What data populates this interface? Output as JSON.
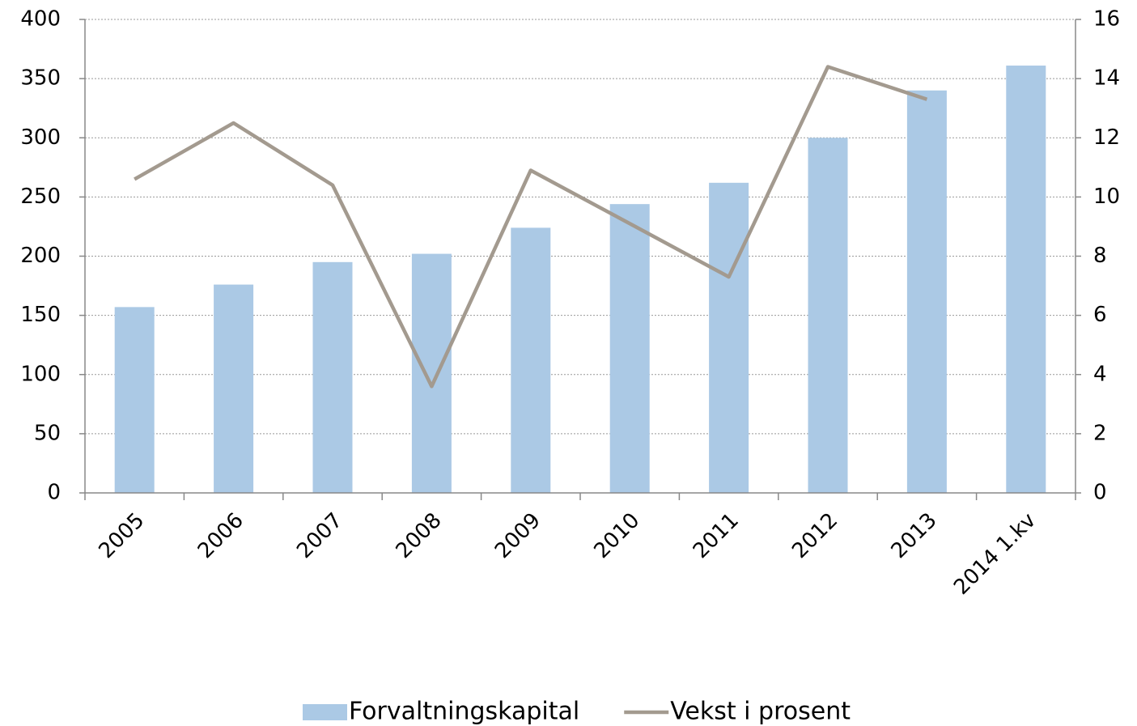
{
  "chart_data": {
    "type": "bar",
    "categories": [
      "2005",
      "2006",
      "2007",
      "2008",
      "2009",
      "2010",
      "2011",
      "2012",
      "2013",
      "2014 1.kv"
    ],
    "series": [
      {
        "name": "Forvaltningskapital",
        "color": "#abc9e5",
        "values": [
          157,
          176,
          195,
          202,
          224,
          244,
          262,
          300,
          340,
          361
        ]
      },
      {
        "name": "Vekst i prosent",
        "color": "#a39a8f",
        "axis": "y2",
        "type": "line",
        "values": [
          10.6,
          12.5,
          10.4,
          3.6,
          10.9,
          9.1,
          7.3,
          14.4,
          13.3,
          null
        ]
      }
    ],
    "ylim": [
      0,
      400
    ],
    "yticks": [
      0,
      50,
      100,
      150,
      200,
      250,
      300,
      350,
      400
    ],
    "y2lim": [
      0,
      16
    ],
    "y2ticks": [
      0,
      2,
      4,
      6,
      8,
      10,
      12,
      14,
      16
    ],
    "grid": true,
    "legend": "bottom"
  }
}
